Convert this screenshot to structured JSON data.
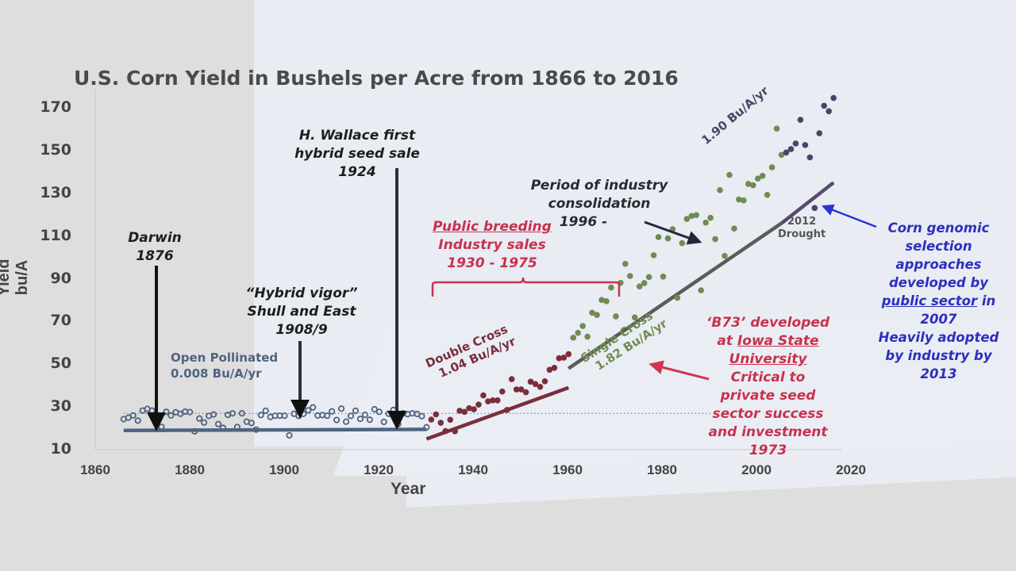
{
  "chart_data": {
    "type": "scatter",
    "title": "U.S. Corn Yield in Bushels per Acre from 1866 to 2016",
    "xlabel": "Year",
    "ylabel": "Yield bu/A",
    "xlim": [
      1860,
      2020
    ],
    "ylim": [
      10,
      170
    ],
    "x_ticks": [
      "1860",
      "1880",
      "1900",
      "1920",
      "1940",
      "1960",
      "1980",
      "2000",
      "2020"
    ],
    "y_ticks": [
      "170",
      "150",
      "130",
      "110",
      "90",
      "70",
      "50",
      "30",
      "10"
    ],
    "grid": false,
    "series": [
      {
        "name": "Open Pollinated",
        "color": "#4f6480",
        "marker": "open-circle",
        "x": [
          1866,
          1867,
          1868,
          1869,
          1870,
          1871,
          1872,
          1873,
          1874,
          1875,
          1876,
          1877,
          1878,
          1879,
          1880,
          1881,
          1882,
          1883,
          1884,
          1885,
          1886,
          1887,
          1888,
          1889,
          1890,
          1891,
          1892,
          1893,
          1894,
          1895,
          1896,
          1897,
          1898,
          1899,
          1900,
          1901,
          1902,
          1903,
          1904,
          1905,
          1906,
          1907,
          1908,
          1909,
          1910,
          1911,
          1912,
          1913,
          1914,
          1915,
          1916,
          1917,
          1918,
          1919,
          1920,
          1921,
          1922,
          1923,
          1924,
          1925,
          1926,
          1927,
          1928,
          1929,
          1930
        ],
        "y": [
          24.3,
          25.0,
          26.0,
          23.6,
          28.3,
          29.1,
          28.3,
          23.8,
          20.7,
          27.7,
          26.0,
          27.5,
          26.8,
          27.8,
          27.6,
          18.6,
          24.6,
          22.7,
          25.8,
          26.5,
          22.0,
          20.2,
          26.3,
          27.0,
          20.6,
          27.0,
          23.1,
          22.5,
          19.4,
          26.2,
          28.2,
          25.3,
          25.9,
          25.9,
          25.9,
          16.7,
          26.8,
          25.8,
          26.8,
          28.4,
          29.8,
          26.0,
          26.2,
          25.9,
          27.9,
          23.9,
          29.2,
          23.1,
          25.8,
          28.2,
          24.4,
          26.3,
          24.0,
          28.9,
          27.7,
          23.0,
          26.8,
          28.6,
          22.0,
          27.0,
          26.6,
          27.0,
          26.7,
          25.7,
          20.5
        ]
      },
      {
        "name": "Double Cross",
        "color": "#7a2e3c",
        "marker": "filled-circle",
        "x": [
          1931,
          1932,
          1933,
          1934,
          1935,
          1936,
          1937,
          1938,
          1939,
          1940,
          1941,
          1942,
          1943,
          1944,
          1945,
          1946,
          1947,
          1948,
          1949,
          1950,
          1951,
          1952,
          1953,
          1954,
          1955,
          1956,
          1957,
          1958,
          1959,
          1960
        ],
        "y": [
          24.1,
          26.5,
          22.6,
          18.7,
          24.0,
          18.6,
          28.2,
          27.7,
          29.4,
          28.9,
          31.1,
          35.4,
          32.6,
          33.1,
          33.1,
          37.2,
          28.6,
          43.0,
          38.2,
          38.2,
          36.9,
          41.8,
          40.7,
          39.4,
          42.0,
          47.4,
          48.3,
          52.8,
          53.1,
          54.7
        ]
      },
      {
        "name": "Single Cross",
        "color": "#6f8c52",
        "marker": "filled-circle",
        "x": [
          1961,
          1962,
          1963,
          1964,
          1965,
          1966,
          1967,
          1968,
          1969,
          1970,
          1971,
          1972,
          1973,
          1974,
          1975,
          1976,
          1977,
          1978,
          1979,
          1980,
          1981,
          1982,
          1983,
          1984,
          1985,
          1986,
          1987,
          1988,
          1989,
          1990,
          1991,
          1992,
          1993,
          1994,
          1995,
          1996,
          1997,
          1998,
          1999,
          2000,
          2001,
          2002,
          2003,
          2004,
          2005
        ],
        "y": [
          62.4,
          64.7,
          67.9,
          62.9,
          74.1,
          73.1,
          80.1,
          79.5,
          85.9,
          72.4,
          88.1,
          97.0,
          91.3,
          71.9,
          86.4,
          88.0,
          90.8,
          101.0,
          109.5,
          91.0,
          108.9,
          113.2,
          81.1,
          106.7,
          118.0,
          119.4,
          119.8,
          84.6,
          116.3,
          118.5,
          108.6,
          131.5,
          100.7,
          138.6,
          113.5,
          127.1,
          126.7,
          134.4,
          133.8,
          136.9,
          138.2,
          129.3,
          142.2,
          160.3,
          148.0
        ]
      },
      {
        "name": "Post-2005 (1.90 Bu/A/yr)",
        "color": "#4b4466",
        "marker": "filled-circle",
        "x": [
          2006,
          2007,
          2008,
          2009,
          2010,
          2011,
          2012,
          2013,
          2014,
          2015,
          2016
        ],
        "y": [
          149.1,
          150.7,
          153.3,
          164.4,
          152.6,
          146.8,
          123.1,
          158.1,
          171.0,
          168.4,
          174.6
        ]
      }
    ],
    "trend_lines": [
      {
        "name": "Open Pollinated 0.008 Bu/A/yr",
        "color": "#4f6480",
        "x": [
          1866,
          1930
        ],
        "y": [
          19,
          19.5
        ]
      },
      {
        "name": "Double Cross 1.04 Bu/A/yr",
        "color": "#7a2e3c",
        "x": [
          1930,
          1960
        ],
        "y": [
          15,
          39
        ]
      },
      {
        "name": "Single Cross 1.82 Bu/A/yr",
        "color": "#5b5b5b",
        "x": [
          1960,
          2005
        ],
        "y": [
          48,
          116
        ]
      },
      {
        "name": "1.90 Bu/A/yr",
        "color": "#554c6e",
        "x": [
          2005,
          2016
        ],
        "y": [
          116,
          135
        ]
      }
    ],
    "reference_line": {
      "style": "dotted",
      "y": 27,
      "x": [
        1866,
        1990
      ]
    },
    "annotations": [
      {
        "text": "Darwin 1876",
        "x": 1874
      },
      {
        "text": "“Hybrid vigor” Shull and East 1908/9",
        "x": 1904
      },
      {
        "text": "H. Wallace first hybrid seed sale 1924",
        "x": 1924
      },
      {
        "text": "Public breeding Industry sales 1930 - 1975",
        "x_range": [
          1930,
          1975
        ]
      },
      {
        "text": "Period of industry consolidation 1996 -",
        "x": 1991
      },
      {
        "text": "'B73' developed at Iowa State University Critical to private seed sector success and investment 1973",
        "x": 1978
      },
      {
        "text": "Corn genomic selection approaches developed by public sector in 2007 Heavily adopted by industry by 2013",
        "x": 2013
      },
      {
        "text": "2012 Drought",
        "x": 2012
      }
    ]
  },
  "title": "U.S. Corn Yield in Bushels per Acre from 1866 to 2016",
  "axes": {
    "xlabel": "Year",
    "ylabel": "Yield bu/A",
    "x_ticks": [
      "1860",
      "1880",
      "1900",
      "1920",
      "1940",
      "1960",
      "1980",
      "2000",
      "2020"
    ],
    "y_ticks": [
      "170",
      "150",
      "130",
      "110",
      "90",
      "70",
      "50",
      "30",
      "10"
    ]
  },
  "labels": {
    "open_pollinated": [
      "Open Pollinated",
      "0.008 Bu/A/yr"
    ],
    "double_cross": [
      "Double Cross",
      "1.04 Bu/A/yr"
    ],
    "single_cross": [
      "Single Cross",
      "1.82 Bu/A/yr"
    ],
    "recent_rate": "1.90 Bu/A/yr",
    "drought": [
      "2012",
      "Drought"
    ]
  },
  "annotations": {
    "darwin": [
      "Darwin",
      "1876"
    ],
    "hybrid_vigor": [
      "“Hybrid vigor”",
      "Shull and East",
      "1908/9"
    ],
    "wallace": [
      "H. Wallace first",
      "hybrid seed sale",
      "1924"
    ],
    "public_breeding": {
      "underlined": "Public breeding",
      "lines": [
        "Industry sales",
        "1930 - 1975"
      ]
    },
    "consolidation": [
      "Period of industry",
      "consolidation",
      "1996 -"
    ],
    "b73": {
      "line1": "‘B73’ developed",
      "line2_pre": "at ",
      "line2_u": "Iowa State",
      "line3_u": "University",
      "rest": [
        "Critical to",
        "private seed",
        "sector success",
        "and investment",
        "1973"
      ]
    },
    "genomic": {
      "lines_top": [
        "Corn genomic",
        "selection",
        "approaches",
        "developed by"
      ],
      "u_text": "public sector",
      "u_tail": " in",
      "lines_bottom": [
        "2007",
        "Heavily adopted",
        "by industry by",
        "2013"
      ]
    }
  },
  "colors": {
    "open_pollinated": "#4f6480",
    "double_cross": "#7a2e3c",
    "single_cross": "#6f8c52",
    "recent": "#4b4466",
    "red_annotation": "#c8314e",
    "blue_annotation": "#2d2fc0",
    "dark_text": "#1e1e1e"
  }
}
